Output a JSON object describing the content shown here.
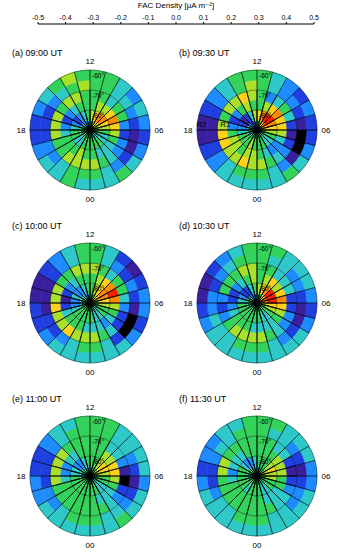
{
  "chart_data": {
    "type": "polar_heatmap",
    "grid": true,
    "colorbar": {
      "title": "FAC Density [μA m⁻²]",
      "range": [
        -0.5,
        0.5
      ],
      "ticks": [
        -0.5,
        -0.4,
        -0.3,
        -0.2,
        -0.1,
        {
          "value": 0,
          "label": "0.0"
        },
        0.1,
        0.2,
        0.3,
        0.4,
        0.5
      ],
      "colors": [
        "#000000",
        "#3a1f9e",
        "#1f3fe0",
        "#1e8cff",
        "#2ec8c8",
        "#33d25a",
        "#a8e02a",
        "#ffd21a",
        "#ff8a00",
        "#ff1a00"
      ]
    },
    "angle_axis": {
      "range": [
        0,
        24
      ],
      "bins": [
        0,
        1,
        2,
        3,
        4,
        5,
        6,
        7,
        8,
        9,
        10,
        11,
        12,
        13,
        14,
        15,
        16,
        17,
        18,
        19,
        20,
        21,
        22,
        23,
        24
      ],
      "ticks": [
        {
          "value": 12,
          "label": "12"
        },
        {
          "value": 18,
          "label": "18"
        },
        {
          "value": 6,
          "label": "06"
        },
        {
          "value": 0,
          "label": "00"
        }
      ]
    },
    "ylim": [
      -90,
      -60
    ],
    "yticks": [
      {
        "value": -60,
        "label": "-60°"
      },
      {
        "value": -70,
        "label": "-70°"
      },
      {
        "value": -80,
        "label": "-80°"
      }
    ],
    "lat_bins": [
      -90,
      -85,
      -80,
      -75,
      -70,
      -65,
      -60
    ],
    "panels": [
      {
        "title": "(a) 09:00 UT",
        "cells": [
          [
            0.05,
            0.05,
            -0.05,
            -0.05,
            0.05,
            0.05,
            0.05,
            0.15,
            0.15,
            0.25,
            0.15,
            0.05,
            0.05,
            -0.15,
            -0.15,
            -0.05,
            0.05,
            0.05,
            0.05,
            -0.05,
            -0.05,
            0.05,
            0.05,
            0.05
          ],
          [
            0.05,
            0.05,
            0.05,
            -0.05,
            -0.05,
            0.05,
            0.15,
            0.25,
            0.35,
            0.35,
            0.25,
            0.15,
            0.05,
            -0.05,
            -0.15,
            -0.25,
            -0.15,
            -0.05,
            0.05,
            0.05,
            -0.05,
            -0.05,
            0.05,
            0.05
          ],
          [
            0.05,
            -0.05,
            -0.05,
            -0.05,
            0.05,
            0.15,
            0.25,
            0.35,
            0.25,
            0.15,
            0.15,
            0.05,
            0.05,
            0.05,
            -0.05,
            -0.15,
            -0.25,
            -0.15,
            -0.05,
            0.05,
            0.05,
            0.05,
            0.15,
            0.05
          ],
          [
            0.15,
            0.05,
            -0.05,
            -0.15,
            -0.15,
            -0.25,
            -0.15,
            0.05,
            0.05,
            -0.05,
            0.05,
            0.05,
            0.05,
            0.15,
            0.15,
            0.05,
            0.15,
            0.15,
            0.15,
            0.05,
            0.05,
            0.15,
            0.15,
            0.15
          ],
          [
            0.05,
            -0.05,
            -0.15,
            -0.25,
            -0.35,
            -0.35,
            -0.25,
            -0.15,
            -0.05,
            -0.05,
            0.05,
            0.05,
            0.15,
            0.05,
            -0.05,
            -0.15,
            -0.25,
            -0.25,
            -0.25,
            -0.15,
            -0.15,
            -0.05,
            0.05,
            0.05
          ],
          [
            -0.05,
            -0.05,
            0.05,
            -0.05,
            -0.15,
            -0.25,
            -0.15,
            -0.05,
            -0.15,
            -0.05,
            0.05,
            0.05,
            0.05,
            0.15,
            0.05,
            -0.05,
            -0.15,
            -0.25,
            -0.25,
            -0.15,
            -0.05,
            -0.05,
            0.05,
            -0.05
          ]
        ]
      },
      {
        "title": "(b) 09:30 UT",
        "annotations": [
          {
            "text": "R2",
            "mlt": 17.6,
            "lat": -62
          },
          {
            "text": "R1",
            "mlt": 17.4,
            "lat": -74
          }
        ],
        "cells": [
          [
            0.05,
            0.05,
            0.05,
            -0.05,
            0.05,
            0.05,
            0.15,
            0.25,
            0.35,
            0.25,
            0.15,
            0.05,
            -0.05,
            -0.15,
            -0.25,
            -0.15,
            -0.05,
            0.05,
            0.05,
            -0.05,
            -0.05,
            0.05,
            0.05,
            0.05
          ],
          [
            0.05,
            0.05,
            -0.05,
            -0.05,
            0.05,
            0.15,
            0.25,
            0.35,
            0.45,
            0.45,
            0.35,
            0.25,
            0.15,
            -0.05,
            -0.25,
            -0.35,
            -0.25,
            -0.15,
            -0.05,
            0.05,
            0.05,
            0.05,
            0.15,
            0.05
          ],
          [
            0.05,
            -0.05,
            -0.15,
            -0.15,
            -0.05,
            0.15,
            0.25,
            0.25,
            0.35,
            0.25,
            0.15,
            0.05,
            0.05,
            0.15,
            0.05,
            -0.15,
            -0.25,
            -0.15,
            0.05,
            0.15,
            0.15,
            0.05,
            0.15,
            0.15
          ],
          [
            0.15,
            0.05,
            -0.05,
            -0.15,
            -0.25,
            -0.35,
            -0.25,
            -0.05,
            0.05,
            -0.05,
            -0.15,
            0.05,
            0.15,
            0.25,
            0.15,
            0.15,
            0.05,
            0.15,
            0.25,
            0.25,
            0.15,
            0.15,
            0.25,
            0.15
          ],
          [
            0.05,
            -0.05,
            -0.15,
            -0.35,
            -0.45,
            -0.45,
            -0.35,
            -0.25,
            -0.15,
            -0.15,
            -0.05,
            0.05,
            0.15,
            0.05,
            -0.05,
            -0.15,
            -0.25,
            -0.35,
            -0.35,
            -0.25,
            -0.15,
            -0.05,
            0.05,
            0.05
          ],
          [
            -0.05,
            -0.05,
            0.05,
            -0.05,
            -0.15,
            -0.25,
            -0.25,
            -0.15,
            -0.25,
            -0.15,
            -0.05,
            0.05,
            0.05,
            0.05,
            -0.05,
            -0.15,
            -0.25,
            -0.35,
            -0.35,
            -0.25,
            -0.15,
            -0.05,
            -0.05,
            -0.05
          ]
        ]
      },
      {
        "title": "(c) 10:00 UT",
        "cells": [
          [
            0.05,
            0.05,
            -0.05,
            -0.05,
            0.05,
            0.05,
            0.15,
            0.15,
            0.25,
            0.15,
            0.05,
            0.05,
            -0.05,
            -0.15,
            -0.05,
            0.05,
            0.05,
            -0.05,
            -0.05,
            0.05,
            0.05,
            0.05,
            0.05,
            0.05
          ],
          [
            0.05,
            -0.05,
            -0.05,
            0.05,
            0.05,
            0.15,
            0.25,
            0.35,
            0.35,
            0.25,
            0.15,
            0.05,
            0.05,
            -0.05,
            -0.15,
            -0.15,
            -0.05,
            -0.15,
            -0.15,
            -0.05,
            0.05,
            0.05,
            0.05,
            0.05
          ],
          [
            -0.05,
            -0.05,
            -0.15,
            -0.05,
            0.05,
            0.15,
            0.35,
            0.45,
            0.35,
            0.25,
            0.15,
            0.05,
            0.05,
            0.05,
            -0.05,
            -0.15,
            -0.25,
            -0.35,
            -0.25,
            -0.05,
            0.05,
            0.05,
            0.05,
            -0.05
          ],
          [
            0.15,
            0.05,
            -0.05,
            -0.25,
            -0.25,
            -0.15,
            -0.05,
            0.05,
            0.05,
            -0.05,
            0.05,
            0.15,
            0.15,
            0.15,
            0.05,
            0.05,
            0.15,
            0.15,
            0.25,
            0.15,
            0.15,
            0.25,
            0.15,
            0.15
          ],
          [
            0.05,
            -0.05,
            -0.25,
            -0.45,
            -0.45,
            -0.35,
            -0.25,
            -0.15,
            -0.25,
            -0.15,
            -0.05,
            0.05,
            0.05,
            -0.05,
            -0.15,
            -0.25,
            -0.35,
            -0.35,
            -0.35,
            -0.25,
            -0.25,
            -0.15,
            -0.05,
            0.05
          ],
          [
            -0.05,
            -0.05,
            -0.05,
            -0.15,
            -0.25,
            -0.15,
            -0.15,
            -0.25,
            -0.35,
            -0.25,
            -0.05,
            0.05,
            0.05,
            -0.05,
            -0.15,
            -0.25,
            -0.35,
            -0.35,
            -0.25,
            -0.25,
            -0.15,
            -0.05,
            -0.05,
            -0.05
          ]
        ]
      },
      {
        "title": "(d) 10:30 UT",
        "cells": [
          [
            0.05,
            0.05,
            0.05,
            -0.05,
            0.05,
            0.15,
            0.25,
            0.35,
            0.25,
            0.15,
            0.05,
            0.05,
            -0.05,
            -0.15,
            -0.15,
            -0.05,
            0.05,
            0.05,
            -0.05,
            -0.05,
            0.05,
            0.05,
            0.05,
            0.05
          ],
          [
            0.05,
            -0.05,
            -0.05,
            0.05,
            0.15,
            0.25,
            0.45,
            0.45,
            0.45,
            0.35,
            0.25,
            0.15,
            0.05,
            -0.05,
            -0.25,
            -0.25,
            -0.15,
            -0.05,
            0.05,
            0.05,
            0.05,
            0.05,
            0.05,
            0.05
          ],
          [
            -0.05,
            -0.05,
            -0.05,
            0.05,
            0.15,
            0.25,
            0.35,
            0.25,
            0.15,
            0.25,
            0.15,
            0.05,
            0.15,
            0.05,
            -0.05,
            -0.15,
            -0.25,
            -0.25,
            -0.15,
            -0.05,
            0.05,
            0.05,
            0.05,
            -0.05
          ],
          [
            0.15,
            0.05,
            -0.05,
            -0.15,
            -0.15,
            -0.25,
            -0.25,
            -0.05,
            -0.05,
            -0.05,
            0.05,
            0.05,
            0.15,
            0.15,
            0.05,
            0.05,
            0.05,
            -0.15,
            -0.25,
            -0.15,
            0.05,
            0.15,
            0.15,
            0.15
          ],
          [
            0.05,
            -0.05,
            -0.15,
            -0.25,
            -0.35,
            -0.35,
            -0.25,
            -0.15,
            -0.15,
            -0.05,
            -0.05,
            0.05,
            0.05,
            0.05,
            -0.05,
            -0.15,
            -0.25,
            -0.15,
            -0.15,
            -0.05,
            -0.05,
            -0.05,
            0.05,
            0.05
          ],
          [
            -0.05,
            -0.05,
            -0.05,
            -0.05,
            -0.15,
            -0.25,
            -0.15,
            -0.05,
            -0.05,
            -0.05,
            0.05,
            0.05,
            0.05,
            -0.05,
            -0.15,
            -0.25,
            -0.35,
            -0.35,
            -0.25,
            -0.15,
            -0.05,
            -0.05,
            -0.05,
            -0.05
          ]
        ]
      },
      {
        "title": "(e) 11:00 UT",
        "cells": [
          [
            0.05,
            0.05,
            -0.05,
            -0.05,
            0.05,
            0.05,
            0.05,
            0.15,
            0.15,
            0.05,
            0.05,
            0.05,
            -0.05,
            -0.05,
            -0.05,
            0.05,
            0.05,
            -0.05,
            -0.05,
            0.05,
            0.05,
            0.05,
            0.05,
            0.05
          ],
          [
            0.05,
            0.05,
            -0.05,
            -0.05,
            0.05,
            0.05,
            0.15,
            0.25,
            0.25,
            0.15,
            0.05,
            0.05,
            0.05,
            -0.05,
            -0.15,
            -0.15,
            -0.05,
            -0.05,
            0.05,
            0.05,
            0.05,
            0.05,
            0.05,
            0.05
          ],
          [
            0.05,
            -0.05,
            -0.05,
            -0.05,
            0.05,
            0.15,
            0.25,
            0.25,
            0.15,
            0.15,
            0.05,
            0.05,
            0.05,
            0.05,
            -0.05,
            -0.05,
            -0.15,
            -0.15,
            -0.05,
            0.05,
            0.05,
            0.05,
            0.05,
            0.05
          ],
          [
            0.05,
            0.05,
            -0.05,
            -0.15,
            -0.25,
            -0.45,
            -0.35,
            -0.15,
            -0.05,
            -0.05,
            0.05,
            0.05,
            0.05,
            0.05,
            0.05,
            0.15,
            0.15,
            0.15,
            0.15,
            0.05,
            0.05,
            0.05,
            0.05,
            0.05
          ],
          [
            0.05,
            -0.05,
            -0.05,
            -0.15,
            -0.25,
            -0.35,
            -0.25,
            -0.15,
            -0.05,
            -0.05,
            0.05,
            0.05,
            0.05,
            0.05,
            -0.05,
            -0.15,
            -0.25,
            -0.25,
            -0.25,
            -0.15,
            -0.15,
            -0.05,
            0.05,
            0.05
          ],
          [
            -0.05,
            -0.05,
            0.05,
            -0.05,
            -0.05,
            -0.15,
            -0.05,
            -0.05,
            -0.05,
            -0.05,
            0.05,
            0.05,
            0.05,
            -0.05,
            -0.05,
            -0.15,
            -0.25,
            -0.25,
            -0.15,
            -0.15,
            -0.05,
            -0.05,
            -0.05,
            -0.05
          ]
        ]
      },
      {
        "title": "(f) 11:30 UT",
        "cells": [
          [
            0.05,
            0.05,
            -0.05,
            0.05,
            0.05,
            0.05,
            0.15,
            0.15,
            0.05,
            0.05,
            0.05,
            -0.05,
            -0.05,
            -0.05,
            0.05,
            0.05,
            0.05,
            -0.05,
            -0.05,
            0.05,
            0.05,
            0.05,
            0.05,
            0.05
          ],
          [
            0.05,
            -0.05,
            -0.05,
            0.05,
            0.05,
            0.15,
            0.15,
            0.25,
            0.15,
            0.05,
            0.05,
            0.05,
            -0.05,
            -0.15,
            -0.15,
            -0.05,
            0.05,
            0.05,
            0.05,
            0.05,
            0.05,
            -0.05,
            0.05,
            0.05
          ],
          [
            0.05,
            -0.05,
            -0.05,
            -0.05,
            0.05,
            0.05,
            0.15,
            0.15,
            0.15,
            0.05,
            0.05,
            0.05,
            0.05,
            0.05,
            -0.05,
            -0.05,
            -0.05,
            -0.15,
            -0.05,
            0.05,
            0.05,
            0.05,
            0.05,
            0.05
          ],
          [
            0.05,
            0.05,
            -0.05,
            -0.05,
            -0.15,
            -0.25,
            -0.35,
            -0.25,
            -0.05,
            -0.05,
            0.05,
            0.05,
            0.05,
            0.05,
            0.05,
            0.05,
            0.15,
            0.15,
            0.05,
            0.05,
            0.05,
            0.05,
            0.05,
            0.05
          ],
          [
            0.05,
            -0.05,
            -0.05,
            -0.15,
            -0.15,
            -0.25,
            -0.35,
            -0.25,
            -0.15,
            -0.05,
            -0.05,
            0.05,
            0.05,
            0.05,
            -0.05,
            -0.05,
            -0.15,
            -0.25,
            -0.25,
            -0.15,
            -0.05,
            -0.05,
            0.05,
            0.05
          ],
          [
            -0.05,
            -0.05,
            -0.05,
            -0.05,
            -0.05,
            -0.15,
            -0.15,
            -0.05,
            -0.05,
            -0.05,
            0.05,
            0.05,
            0.05,
            -0.05,
            -0.05,
            -0.15,
            -0.15,
            -0.25,
            -0.15,
            -0.05,
            -0.05,
            -0.05,
            -0.05,
            -0.05
          ]
        ]
      }
    ]
  }
}
